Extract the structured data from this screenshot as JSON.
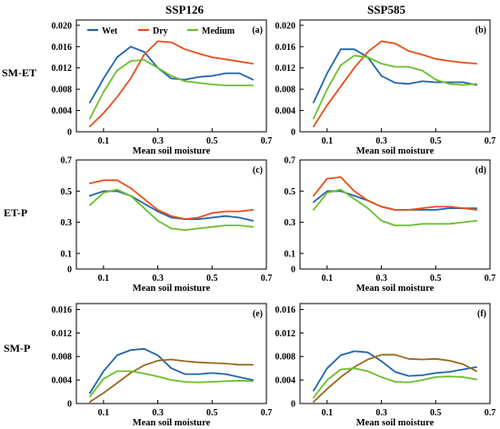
{
  "figure": {
    "col_titles": [
      "SSP126",
      "SSP585"
    ],
    "row_labels": [
      "SM-ET",
      "ET-P",
      "SM-P"
    ]
  },
  "colors": {
    "c1": "#2166ac",
    "c2": "#e8501c",
    "c3": "#6dbf2c",
    "c2_smp": "#9a6a1e"
  },
  "chart_data": [
    {
      "type": "line",
      "tag": "(a)",
      "scenario": "SSP126",
      "row": "SM-ET",
      "xlabel": "Mean soil moisture",
      "ylabel": "",
      "xlim": [
        0,
        0.7
      ],
      "ylim": [
        0,
        0.021
      ],
      "xticks": [
        0.1,
        0.3,
        0.5,
        0.7
      ],
      "xtick_labels": [
        "0.1",
        "0.3",
        "0.5",
        "0.7"
      ],
      "yticks": [
        0,
        0.004,
        0.008,
        0.012,
        0.016,
        0.02
      ],
      "ytick_labels": [
        "0",
        "0.004",
        "0.008",
        "0.012",
        "0.016",
        "0.020"
      ],
      "legend": {
        "show": true,
        "entries": [
          "Wet",
          "Dry",
          "Medium"
        ]
      },
      "series": [
        {
          "name": "Wet",
          "color_key": "c1",
          "x": [
            0.05,
            0.1,
            0.15,
            0.2,
            0.25,
            0.3,
            0.35,
            0.4,
            0.45,
            0.5,
            0.55,
            0.6,
            0.65
          ],
          "y": [
            0.0055,
            0.01,
            0.014,
            0.016,
            0.015,
            0.012,
            0.01,
            0.0098,
            0.0103,
            0.0105,
            0.011,
            0.011,
            0.0098
          ]
        },
        {
          "name": "Dry",
          "color_key": "c2",
          "x": [
            0.05,
            0.1,
            0.15,
            0.2,
            0.25,
            0.3,
            0.35,
            0.4,
            0.45,
            0.5,
            0.55,
            0.6,
            0.65
          ],
          "y": [
            0.001,
            0.0035,
            0.0065,
            0.01,
            0.0145,
            0.017,
            0.0168,
            0.0155,
            0.0147,
            0.014,
            0.0136,
            0.0132,
            0.0128
          ]
        },
        {
          "name": "Medium",
          "color_key": "c3",
          "x": [
            0.05,
            0.1,
            0.15,
            0.2,
            0.25,
            0.3,
            0.35,
            0.4,
            0.45,
            0.5,
            0.55,
            0.6,
            0.65
          ],
          "y": [
            0.0025,
            0.0075,
            0.0115,
            0.0133,
            0.0135,
            0.012,
            0.0105,
            0.0095,
            0.0092,
            0.0089,
            0.0087,
            0.0087,
            0.0087
          ]
        }
      ]
    },
    {
      "type": "line",
      "tag": "(b)",
      "scenario": "SSP585",
      "row": "SM-ET",
      "xlabel": "Mean soil moisture",
      "ylabel": "",
      "xlim": [
        0,
        0.7
      ],
      "ylim": [
        0,
        0.021
      ],
      "xticks": [
        0.1,
        0.3,
        0.5,
        0.7
      ],
      "xtick_labels": [
        "0.1",
        "0.3",
        "0.5",
        "0.7"
      ],
      "yticks": [
        0,
        0.004,
        0.008,
        0.012,
        0.016,
        0.02
      ],
      "ytick_labels": [
        "0",
        "0.004",
        "0.008",
        "0.012",
        "0.016",
        "0.020"
      ],
      "legend": {
        "show": false,
        "entries": []
      },
      "series": [
        {
          "name": "Wet",
          "color_key": "c1",
          "x": [
            0.05,
            0.1,
            0.15,
            0.2,
            0.25,
            0.3,
            0.35,
            0.4,
            0.45,
            0.5,
            0.55,
            0.6,
            0.65
          ],
          "y": [
            0.0055,
            0.011,
            0.0155,
            0.0155,
            0.014,
            0.0105,
            0.0092,
            0.009,
            0.0095,
            0.0093,
            0.0093,
            0.0093,
            0.0088
          ]
        },
        {
          "name": "Dry",
          "color_key": "c2",
          "x": [
            0.05,
            0.1,
            0.15,
            0.2,
            0.25,
            0.3,
            0.35,
            0.4,
            0.45,
            0.5,
            0.55,
            0.6,
            0.65
          ],
          "y": [
            0.001,
            0.005,
            0.0085,
            0.012,
            0.015,
            0.017,
            0.0166,
            0.0152,
            0.0145,
            0.0137,
            0.0133,
            0.013,
            0.0128
          ]
        },
        {
          "name": "Medium",
          "color_key": "c3",
          "x": [
            0.05,
            0.1,
            0.15,
            0.2,
            0.25,
            0.3,
            0.35,
            0.4,
            0.45,
            0.5,
            0.55,
            0.6,
            0.65
          ],
          "y": [
            0.0025,
            0.008,
            0.0125,
            0.0143,
            0.014,
            0.0128,
            0.0122,
            0.0122,
            0.0115,
            0.0098,
            0.009,
            0.0088,
            0.009
          ]
        }
      ]
    },
    {
      "type": "line",
      "tag": "(c)",
      "scenario": "SSP126",
      "row": "ET-P",
      "xlabel": "Mean soil moisture",
      "ylabel": "",
      "xlim": [
        0,
        0.7
      ],
      "ylim": [
        0,
        0.7
      ],
      "xticks": [
        0.1,
        0.3,
        0.5,
        0.7
      ],
      "xtick_labels": [
        "0.1",
        "0.3",
        "0.5",
        "0.7"
      ],
      "yticks": [
        0,
        0.1,
        0.3,
        0.5,
        0.7
      ],
      "ytick_labels": [
        "0",
        "0.1",
        "0.3",
        "0.5",
        "0.7"
      ],
      "legend": {
        "show": false,
        "entries": []
      },
      "series": [
        {
          "name": "Wet",
          "color_key": "c1",
          "x": [
            0.05,
            0.1,
            0.15,
            0.2,
            0.25,
            0.3,
            0.35,
            0.4,
            0.45,
            0.5,
            0.55,
            0.6,
            0.65
          ],
          "y": [
            0.47,
            0.5,
            0.5,
            0.47,
            0.42,
            0.37,
            0.33,
            0.32,
            0.32,
            0.33,
            0.34,
            0.33,
            0.31
          ]
        },
        {
          "name": "Dry",
          "color_key": "c2",
          "x": [
            0.05,
            0.1,
            0.15,
            0.2,
            0.25,
            0.3,
            0.35,
            0.4,
            0.45,
            0.5,
            0.55,
            0.6,
            0.65
          ],
          "y": [
            0.55,
            0.57,
            0.57,
            0.52,
            0.45,
            0.38,
            0.34,
            0.32,
            0.33,
            0.36,
            0.37,
            0.37,
            0.38
          ]
        },
        {
          "name": "Medium",
          "color_key": "c3",
          "x": [
            0.05,
            0.1,
            0.15,
            0.2,
            0.25,
            0.3,
            0.35,
            0.4,
            0.45,
            0.5,
            0.55,
            0.6,
            0.65
          ],
          "y": [
            0.41,
            0.49,
            0.51,
            0.47,
            0.39,
            0.31,
            0.26,
            0.25,
            0.26,
            0.27,
            0.28,
            0.28,
            0.27
          ]
        }
      ]
    },
    {
      "type": "line",
      "tag": "(d)",
      "scenario": "SSP585",
      "row": "ET-P",
      "xlabel": "Mean soil moisture",
      "ylabel": "",
      "xlim": [
        0,
        0.7
      ],
      "ylim": [
        0,
        0.7
      ],
      "xticks": [
        0.1,
        0.3,
        0.5,
        0.7
      ],
      "xtick_labels": [
        "0.1",
        "0.3",
        "0.5",
        "0.7"
      ],
      "yticks": [
        0,
        0.1,
        0.3,
        0.5,
        0.7
      ],
      "ytick_labels": [
        "0",
        "0.1",
        "0.3",
        "0.5",
        "0.7"
      ],
      "legend": {
        "show": false,
        "entries": []
      },
      "series": [
        {
          "name": "Wet",
          "color_key": "c1",
          "x": [
            0.05,
            0.1,
            0.15,
            0.2,
            0.25,
            0.3,
            0.35,
            0.4,
            0.45,
            0.5,
            0.55,
            0.6,
            0.65
          ],
          "y": [
            0.43,
            0.5,
            0.5,
            0.47,
            0.44,
            0.4,
            0.38,
            0.38,
            0.38,
            0.38,
            0.39,
            0.39,
            0.39
          ]
        },
        {
          "name": "Dry",
          "color_key": "c2",
          "x": [
            0.05,
            0.1,
            0.15,
            0.2,
            0.25,
            0.3,
            0.35,
            0.4,
            0.45,
            0.5,
            0.55,
            0.6,
            0.65
          ],
          "y": [
            0.47,
            0.58,
            0.59,
            0.5,
            0.44,
            0.4,
            0.38,
            0.38,
            0.39,
            0.4,
            0.4,
            0.39,
            0.38
          ]
        },
        {
          "name": "Medium",
          "color_key": "c3",
          "x": [
            0.05,
            0.1,
            0.15,
            0.2,
            0.25,
            0.3,
            0.35,
            0.4,
            0.45,
            0.5,
            0.55,
            0.6,
            0.65
          ],
          "y": [
            0.38,
            0.49,
            0.51,
            0.45,
            0.39,
            0.31,
            0.28,
            0.28,
            0.29,
            0.29,
            0.29,
            0.3,
            0.31
          ]
        }
      ]
    },
    {
      "type": "line",
      "tag": "(e)",
      "scenario": "SSP126",
      "row": "SM-P",
      "xlabel": "Mean soil moisture",
      "ylabel": "",
      "xlim": [
        0,
        0.7
      ],
      "ylim": [
        0,
        0.017
      ],
      "xticks": [
        0.1,
        0.3,
        0.5,
        0.7
      ],
      "xtick_labels": [
        "0.1",
        "0.3",
        "0.5",
        "0.7"
      ],
      "yticks": [
        0,
        0.004,
        0.008,
        0.012,
        0.016
      ],
      "ytick_labels": [
        "0",
        "0.004",
        "0.008",
        "0.012",
        "0.016"
      ],
      "legend": {
        "show": false,
        "entries": []
      },
      "series": [
        {
          "name": "Wet",
          "color_key": "c1",
          "x": [
            0.05,
            0.1,
            0.15,
            0.2,
            0.25,
            0.3,
            0.35,
            0.4,
            0.45,
            0.5,
            0.55,
            0.6,
            0.65
          ],
          "y": [
            0.0018,
            0.0055,
            0.0082,
            0.0091,
            0.0093,
            0.0082,
            0.006,
            0.005,
            0.005,
            0.0052,
            0.005,
            0.0045,
            0.004
          ]
        },
        {
          "name": "Dry",
          "color_key": "c2_smp",
          "x": [
            0.05,
            0.1,
            0.15,
            0.2,
            0.25,
            0.3,
            0.35,
            0.4,
            0.45,
            0.5,
            0.55,
            0.6,
            0.65
          ],
          "y": [
            0.0003,
            0.0018,
            0.0035,
            0.0052,
            0.0065,
            0.0073,
            0.0075,
            0.0072,
            0.007,
            0.0069,
            0.0068,
            0.0066,
            0.0066
          ]
        },
        {
          "name": "Medium",
          "color_key": "c3",
          "x": [
            0.05,
            0.1,
            0.15,
            0.2,
            0.25,
            0.3,
            0.35,
            0.4,
            0.45,
            0.5,
            0.55,
            0.6,
            0.65
          ],
          "y": [
            0.0012,
            0.0042,
            0.0055,
            0.0055,
            0.0051,
            0.0046,
            0.004,
            0.0037,
            0.0036,
            0.0037,
            0.0038,
            0.0039,
            0.0038
          ]
        }
      ]
    },
    {
      "type": "line",
      "tag": "(f)",
      "scenario": "SSP585",
      "row": "SM-P",
      "xlabel": "Mean soil moisture",
      "ylabel": "",
      "xlim": [
        0,
        0.7
      ],
      "ylim": [
        0,
        0.017
      ],
      "xticks": [
        0.1,
        0.3,
        0.5,
        0.7
      ],
      "xtick_labels": [
        "0.1",
        "0.3",
        "0.5",
        "0.7"
      ],
      "yticks": [
        0,
        0.004,
        0.008,
        0.012,
        0.016
      ],
      "ytick_labels": [
        "0",
        "0.004",
        "0.008",
        "0.012",
        "0.016"
      ],
      "legend": {
        "show": false,
        "entries": []
      },
      "series": [
        {
          "name": "Wet",
          "color_key": "c1",
          "x": [
            0.05,
            0.1,
            0.15,
            0.2,
            0.25,
            0.3,
            0.35,
            0.4,
            0.45,
            0.5,
            0.55,
            0.6,
            0.65
          ],
          "y": [
            0.0022,
            0.006,
            0.0082,
            0.0089,
            0.0087,
            0.0072,
            0.0054,
            0.0047,
            0.0048,
            0.0052,
            0.0054,
            0.0058,
            0.0062
          ]
        },
        {
          "name": "Dry",
          "color_key": "c2_smp",
          "x": [
            0.05,
            0.1,
            0.15,
            0.2,
            0.25,
            0.3,
            0.35,
            0.4,
            0.45,
            0.5,
            0.55,
            0.6,
            0.65
          ],
          "y": [
            0.0003,
            0.0025,
            0.0045,
            0.0062,
            0.0075,
            0.0083,
            0.0083,
            0.0076,
            0.0075,
            0.0076,
            0.0073,
            0.0067,
            0.0055
          ]
        },
        {
          "name": "Medium",
          "color_key": "c3",
          "x": [
            0.05,
            0.1,
            0.15,
            0.2,
            0.25,
            0.3,
            0.35,
            0.4,
            0.45,
            0.5,
            0.55,
            0.6,
            0.65
          ],
          "y": [
            0.001,
            0.004,
            0.0058,
            0.006,
            0.0055,
            0.0045,
            0.0037,
            0.0036,
            0.004,
            0.0045,
            0.0046,
            0.0045,
            0.0041
          ]
        }
      ]
    }
  ]
}
